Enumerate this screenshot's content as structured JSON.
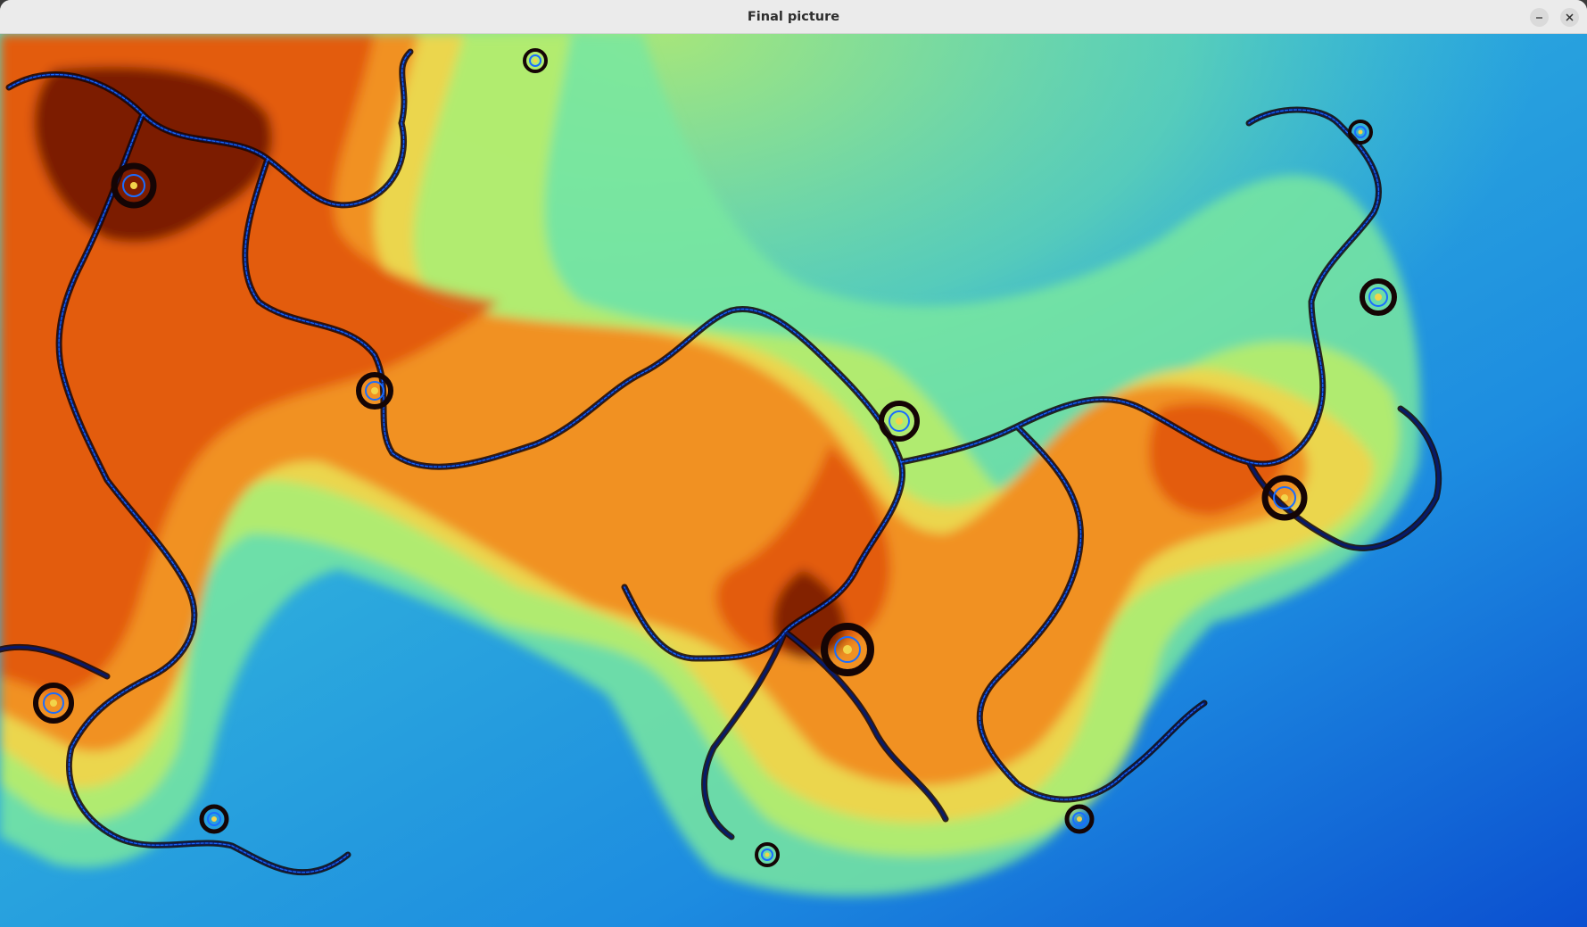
{
  "window": {
    "title": "Final picture",
    "minimize_icon": "minimize-icon",
    "close_icon": "close-icon"
  },
  "image": {
    "subject": "julia-set-fractal",
    "palette": {
      "deep_blue": "#0b4fd0",
      "blue": "#1d8ce0",
      "sky": "#2fb0dc",
      "teal": "#4fd6c4",
      "mint": "#78e8a0",
      "lime": "#b8ec6c",
      "yellow": "#f2d44a",
      "orange": "#f28a1e",
      "red_orange": "#e0520c",
      "dark_red": "#6a1204",
      "near_black": "#150505",
      "navy": "#061a6e",
      "bright_blue": "#1a6dff"
    }
  }
}
